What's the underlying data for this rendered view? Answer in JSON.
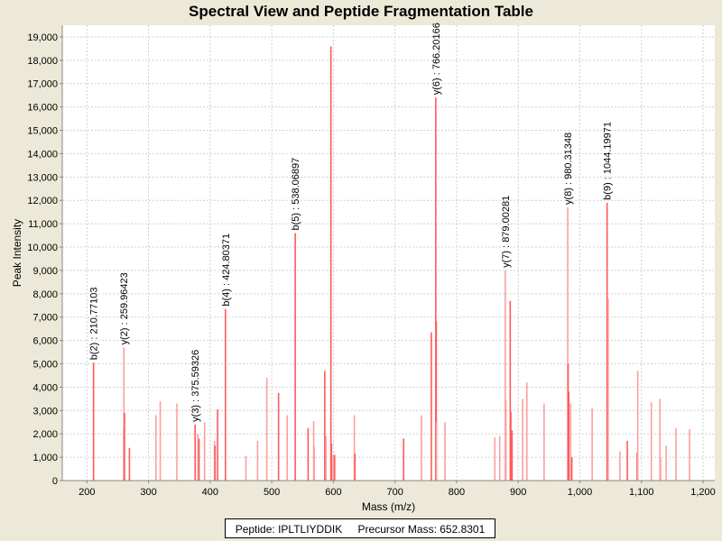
{
  "chart_data": {
    "type": "bar",
    "title": "Spectral View and Peptide Fragmentation Table",
    "xlabel": "Mass (m/z)",
    "ylabel": "Peak Intensity",
    "xlim": [
      160,
      1219
    ],
    "ylim": [
      0,
      19500
    ],
    "grid": true,
    "x_ticks": [
      "200",
      "300",
      "400",
      "500",
      "600",
      "700",
      "800",
      "900",
      "1,000",
      "1,100",
      "1,200"
    ],
    "x_tick_values": [
      200,
      300,
      400,
      500,
      600,
      700,
      800,
      900,
      1000,
      1100,
      1200
    ],
    "y_ticks": [
      "0",
      "1,000",
      "2,000",
      "3,000",
      "4,000",
      "5,000",
      "6,000",
      "7,000",
      "8,000",
      "9,000",
      "10,000",
      "11,000",
      "12,000",
      "13,000",
      "14,000",
      "15,000",
      "16,000",
      "17,000",
      "18,000",
      "19,000"
    ],
    "y_tick_values": [
      0,
      1000,
      2000,
      3000,
      4000,
      5000,
      6000,
      7000,
      8000,
      9000,
      10000,
      11000,
      12000,
      13000,
      14000,
      15000,
      16000,
      17000,
      18000,
      19000
    ],
    "peaks": [
      [
        210.77,
        5050,
        1
      ],
      [
        259.5,
        2200,
        0
      ],
      [
        259.96,
        5700,
        0
      ],
      [
        261,
        2900,
        1
      ],
      [
        269,
        1400,
        1
      ],
      [
        312,
        2800,
        0
      ],
      [
        319,
        3400,
        0
      ],
      [
        346,
        3300,
        0
      ],
      [
        375.59,
        2400,
        1
      ],
      [
        380,
        2000,
        0
      ],
      [
        382,
        1800,
        1
      ],
      [
        391,
        2500,
        0
      ],
      [
        407,
        1700,
        0
      ],
      [
        408,
        1500,
        1
      ],
      [
        412,
        3050,
        1
      ],
      [
        424.8,
        7350,
        1
      ],
      [
        458,
        1050,
        0
      ],
      [
        477,
        1700,
        0
      ],
      [
        492,
        4400,
        0
      ],
      [
        511,
        3750,
        1
      ],
      [
        525,
        2800,
        0
      ],
      [
        538.07,
        10600,
        1
      ],
      [
        559,
        2250,
        1
      ],
      [
        568,
        2550,
        0
      ],
      [
        569,
        1450,
        0
      ],
      [
        586,
        4700,
        1
      ],
      [
        588,
        1900,
        0
      ],
      [
        596,
        18600,
        1
      ],
      [
        597,
        1600,
        1
      ],
      [
        600,
        1100,
        0
      ],
      [
        602,
        1100,
        1
      ],
      [
        634,
        2800,
        0
      ],
      [
        635,
        1150,
        1
      ],
      [
        714,
        1800,
        1
      ],
      [
        743,
        2800,
        0
      ],
      [
        759,
        6350,
        1
      ],
      [
        766.2,
        16400,
        1
      ],
      [
        767,
        6800,
        1
      ],
      [
        767.5,
        2500,
        0
      ],
      [
        781,
        2500,
        0
      ],
      [
        862,
        1850,
        0
      ],
      [
        870,
        1900,
        0
      ],
      [
        879,
        9000,
        0
      ],
      [
        880,
        3450,
        0
      ],
      [
        887,
        7700,
        1
      ],
      [
        888,
        2950,
        1
      ],
      [
        890,
        2150,
        1
      ],
      [
        907,
        3500,
        0
      ],
      [
        914,
        4200,
        0
      ],
      [
        942,
        3300,
        0
      ],
      [
        980.31,
        11700,
        0
      ],
      [
        981,
        5000,
        1
      ],
      [
        982,
        3800,
        1
      ],
      [
        985,
        3300,
        0
      ],
      [
        987,
        1000,
        1
      ],
      [
        1020,
        3100,
        0
      ],
      [
        1044.2,
        11900,
        1
      ],
      [
        1046,
        7800,
        0
      ],
      [
        1065,
        1250,
        0
      ],
      [
        1077,
        1700,
        1
      ],
      [
        1093,
        1200,
        1
      ],
      [
        1094,
        4700,
        0
      ],
      [
        1116,
        3350,
        0
      ],
      [
        1130,
        3500,
        0
      ],
      [
        1131,
        1000,
        0
      ],
      [
        1140,
        1500,
        0
      ],
      [
        1156,
        2250,
        0
      ],
      [
        1178,
        2200,
        0
      ]
    ],
    "peak_fields": [
      "mz",
      "intensity",
      "strong"
    ],
    "annotations": [
      {
        "mz": 210.77,
        "intensity": 5050,
        "label": "b(2) : 210.77103"
      },
      {
        "mz": 259.96,
        "intensity": 5700,
        "label": "y(2) : 259.96423"
      },
      {
        "mz": 375.59,
        "intensity": 2400,
        "label": "y(3) : 375.59326"
      },
      {
        "mz": 424.8,
        "intensity": 7350,
        "label": "b(4) : 424.80371"
      },
      {
        "mz": 538.07,
        "intensity": 10600,
        "label": "b(5) : 538.06897"
      },
      {
        "mz": 766.2,
        "intensity": 16400,
        "label": "y(6) : 766.20166"
      },
      {
        "mz": 879,
        "intensity": 9000,
        "label": "y(7) : 879.00281"
      },
      {
        "mz": 980.31,
        "intensity": 11700,
        "label": "y(8) : 980.31348"
      },
      {
        "mz": 1044.2,
        "intensity": 11900,
        "label": "b(9) : 1044.19971"
      }
    ],
    "colors": {
      "strong": "#ff5a5a",
      "light": "#ff9e9e",
      "grid": "#d0d0d0",
      "background": "#ece9d8"
    }
  },
  "legend": {
    "peptide": "Peptide: IPLTLIYDDIK",
    "precursor": "Precursor Mass: 652.8301"
  }
}
